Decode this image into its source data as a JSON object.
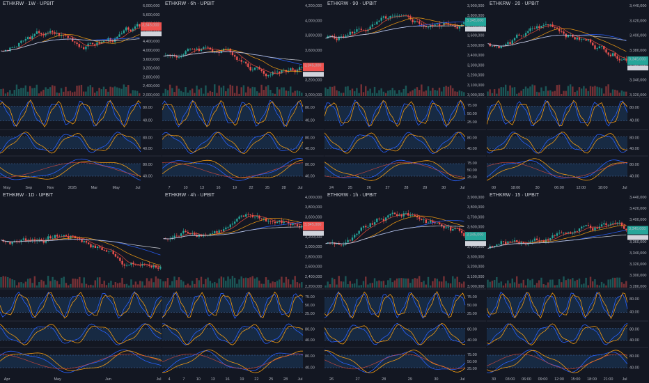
{
  "colors": {
    "bg": "#131722",
    "grid": "#1e222d",
    "up": "#26a69a",
    "down": "#ef5350",
    "ma_red": "#e74c3c",
    "ma_orange": "#f39c12",
    "ma_blue": "#2962ff",
    "ma_white": "#d1d4dc",
    "osc_fill": "#1c3a5e",
    "osc_dash": "#4a6fa5",
    "osc_line1": "#2962ff",
    "osc_line2": "#f39c12",
    "label_red": "#ef5350",
    "label_green": "#26a69a",
    "label_white": "#d1d4dc"
  },
  "panels": [
    {
      "title": "ETHKRW · 1W · UPBIT",
      "price_ticks": [
        "6,000,000",
        "5,600,000",
        "5,200,000",
        "4,800,000",
        "4,400,000",
        "4,000,000",
        "3,600,000",
        "3,200,000",
        "2,800,000",
        "2,400,000",
        "2,000,000"
      ],
      "price_label": "3,345,000",
      "price_label_color": "red",
      "osc_ticks": [
        [
          "80.00",
          "40.00"
        ],
        [
          "80.00",
          "40.00"
        ],
        [
          "80.00",
          "40.00"
        ]
      ],
      "time_ticks": [
        "May",
        "Sep",
        "Nov",
        "2025",
        "Mar",
        "May",
        "Jul"
      ]
    },
    {
      "title": "ETHKRW · 6h · UPBIT",
      "price_ticks": [
        "4,200,000",
        "4,000,000",
        "3,800,000",
        "3,600,000",
        "3,400,000",
        "3,200,000",
        "3,000,000"
      ],
      "price_label": "3,345,000",
      "price_label_color": "red",
      "osc_ticks": [
        [
          "80.00",
          "40.00"
        ],
        [
          "80.00",
          "40.00"
        ],
        [
          "80.00",
          "40.00"
        ]
      ],
      "time_ticks": [
        "7",
        "10",
        "13",
        "16",
        "19",
        "22",
        "25",
        "28",
        "Jul"
      ]
    },
    {
      "title": "ETHKRW · 90 · UPBIT",
      "price_ticks": [
        "3,900,000",
        "3,800,000",
        "3,700,000",
        "3,600,000",
        "3,500,000",
        "3,400,000",
        "3,300,000",
        "3,200,000",
        "3,100,000",
        "3,000,000"
      ],
      "price_label": "3,345,000",
      "price_label_color": "green",
      "osc_ticks": [
        [
          "75.00",
          "50.00",
          "25.00"
        ],
        [
          "80.00",
          "40.00"
        ],
        [
          "75.00",
          "50.00",
          "25.00"
        ]
      ],
      "time_ticks": [
        "24",
        "25",
        "26",
        "27",
        "28",
        "29",
        "30",
        "Jul"
      ]
    },
    {
      "title": "ETHKRW · 20 · UPBIT",
      "price_ticks": [
        "3,440,000",
        "3,420,000",
        "3,400,000",
        "3,380,000",
        "3,360,000",
        "3,340,000",
        "3,320,000"
      ],
      "price_label": "3,345,000",
      "price_label_color": "green",
      "osc_ticks": [
        [
          "80.00",
          "40.00"
        ],
        [
          "80.00",
          "40.00"
        ],
        [
          "80.00",
          "40.00"
        ]
      ],
      "time_ticks": [
        "00",
        "18:00",
        "30",
        "06:00",
        "12:00",
        "18:00",
        "Jul"
      ]
    },
    {
      "title": "ETHKRW · 1D · UPBIT",
      "price_ticks": [],
      "price_label": "",
      "price_label_color": "red",
      "osc_ticks": [
        [],
        [],
        []
      ],
      "time_ticks": [
        "Apr",
        "May",
        "Jun",
        "Jul"
      ]
    },
    {
      "title": "ETHKRW · 4h · UPBIT",
      "price_ticks": [
        "4,000,000",
        "3,800,000",
        "3,600,000",
        "3,400,000",
        "3,200,000",
        "3,000,000",
        "2,800,000",
        "2,600,000",
        "2,400,000",
        "2,200,000"
      ],
      "price_label": "3,345,000",
      "price_label_color": "red",
      "osc_ticks": [
        [
          "75.00",
          "50.00",
          "25.00"
        ],
        [
          "80.00",
          "40.00"
        ],
        [
          "80.00",
          "40.00"
        ]
      ],
      "time_ticks": [
        "4",
        "7",
        "10",
        "13",
        "16",
        "19",
        "22",
        "25",
        "28",
        "Jul"
      ]
    },
    {
      "title": "ETHKRW · 1h · UPBIT",
      "price_ticks": [
        "3,900,000",
        "3,800,000",
        "3,700,000",
        "3,600,000",
        "3,500,000",
        "3,400,000",
        "3,300,000",
        "3,200,000",
        "3,100,000",
        "3,000,000"
      ],
      "price_label": "3,345,000",
      "price_label_color": "green",
      "osc_ticks": [
        [
          "75.00",
          "50.00",
          "25.00"
        ],
        [
          "80.00",
          "40.00"
        ],
        [
          "75.00",
          "50.00",
          "25.00"
        ]
      ],
      "time_ticks": [
        "26",
        "27",
        "28",
        "29",
        "30",
        "Jul"
      ]
    },
    {
      "title": "ETHKRW · 15 · UPBIT",
      "price_ticks": [
        "3,440,000",
        "3,420,000",
        "3,400,000",
        "3,380,000",
        "3,360,000",
        "3,340,000",
        "3,320,000",
        "3,300,000",
        "3,280,000"
      ],
      "price_label": "3,345,000",
      "price_label_color": "green",
      "osc_ticks": [
        [
          "80.00",
          "40.00"
        ],
        [
          "80.00",
          "40.00"
        ],
        [
          "80.00",
          "40.00"
        ]
      ],
      "time_ticks": [
        "30",
        "03:00",
        "06:00",
        "09:00",
        "12:00",
        "15:00",
        "18:00",
        "21:00",
        "Jul"
      ]
    }
  ]
}
